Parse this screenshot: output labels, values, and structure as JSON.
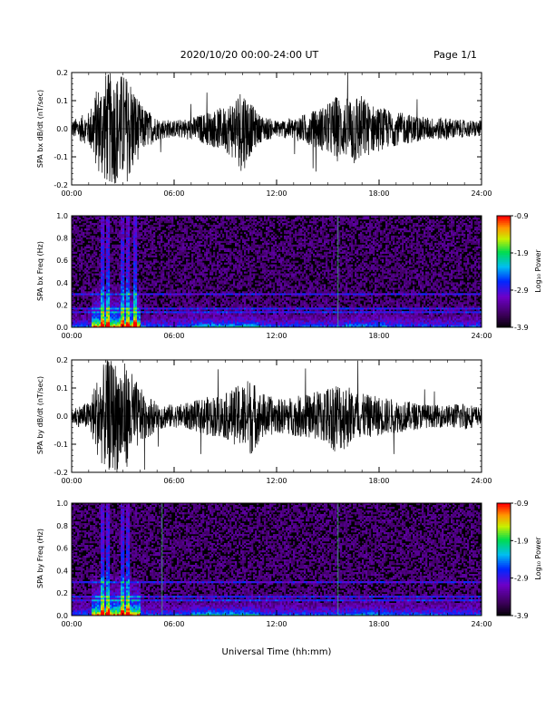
{
  "header": {
    "title": "2020/10/20  00:00-24:00 UT",
    "page": "Page 1/1"
  },
  "xlabel": "Universal Time (hh:mm)",
  "x_ticks": [
    "00:00",
    "06:00",
    "12:00",
    "18:00",
    "24:00"
  ],
  "colorbar": {
    "label": "Log₁₀ Power",
    "ticks": [
      "-0.9",
      "-1.9",
      "-2.9",
      "-3.9"
    ],
    "range": [
      -3.9,
      -0.9
    ]
  },
  "chart_data": [
    {
      "type": "line",
      "ylabel": "SPA bx dB/dt (nT/sec)",
      "xlim": [
        0,
        24
      ],
      "ylim": [
        -0.2,
        0.2
      ],
      "y_ticks": [
        "-0.2",
        "-0.1",
        "0.0",
        "0.1",
        "0.2"
      ],
      "envelope": {
        "hours": [
          0,
          1,
          1.5,
          2,
          2.5,
          3,
          3.5,
          4,
          5,
          6,
          7,
          8,
          9,
          9.6,
          10,
          10.5,
          11,
          12,
          13,
          14,
          15,
          15.5,
          16,
          16.5,
          17,
          17.5,
          18,
          19,
          20,
          21,
          22,
          23,
          24
        ],
        "amplitude": [
          0.03,
          0.06,
          0.15,
          0.2,
          0.2,
          0.2,
          0.18,
          0.09,
          0.04,
          0.03,
          0.04,
          0.06,
          0.08,
          0.12,
          0.16,
          0.09,
          0.05,
          0.03,
          0.04,
          0.06,
          0.09,
          0.12,
          0.1,
          0.14,
          0.12,
          0.09,
          0.08,
          0.06,
          0.05,
          0.04,
          0.04,
          0.03,
          0.03
        ]
      }
    },
    {
      "type": "heatmap",
      "ylabel": "SPA bx Freq (Hz)",
      "xlim": [
        0,
        24
      ],
      "ylim": [
        0.0,
        1.0
      ],
      "y_ticks": [
        "0.0",
        "0.2",
        "0.4",
        "0.6",
        "0.8",
        "1.0"
      ],
      "bright_columns_hours": [
        1.8,
        2.1,
        3.0,
        3.3,
        3.7
      ],
      "spectral_lines_hz": [
        0.3,
        0.14,
        0.17
      ],
      "narrow_spike_hours": [
        15.6
      ]
    },
    {
      "type": "line",
      "ylabel": "SPA by dB/dt (nT/sec)",
      "xlim": [
        0,
        24
      ],
      "ylim": [
        -0.2,
        0.2
      ],
      "y_ticks": [
        "-0.2",
        "-0.1",
        "0.0",
        "0.1",
        "0.2"
      ],
      "envelope": {
        "hours": [
          0,
          1,
          1.5,
          2,
          2.5,
          3,
          3.5,
          4,
          5,
          6,
          7,
          8,
          9,
          10,
          10.5,
          11,
          12,
          13,
          14,
          15,
          15.5,
          16,
          16.5,
          17,
          18,
          19,
          20,
          21,
          22,
          23,
          24
        ],
        "amplitude": [
          0.03,
          0.05,
          0.14,
          0.2,
          0.2,
          0.2,
          0.16,
          0.1,
          0.05,
          0.04,
          0.05,
          0.07,
          0.08,
          0.12,
          0.14,
          0.09,
          0.06,
          0.07,
          0.08,
          0.11,
          0.13,
          0.12,
          0.1,
          0.08,
          0.07,
          0.06,
          0.05,
          0.04,
          0.04,
          0.05,
          0.03
        ]
      }
    },
    {
      "type": "heatmap",
      "ylabel": "SPA by Freq (Hz)",
      "xlim": [
        0,
        24
      ],
      "ylim": [
        0.0,
        1.0
      ],
      "y_ticks": [
        "0.0",
        "0.2",
        "0.4",
        "0.6",
        "0.8",
        "1.0"
      ],
      "bright_columns_hours": [
        1.8,
        2.1,
        3.0,
        3.3
      ],
      "spectral_lines_hz": [
        0.3,
        0.14,
        0.17
      ],
      "narrow_spike_hours": [
        5.3,
        15.6
      ]
    }
  ]
}
